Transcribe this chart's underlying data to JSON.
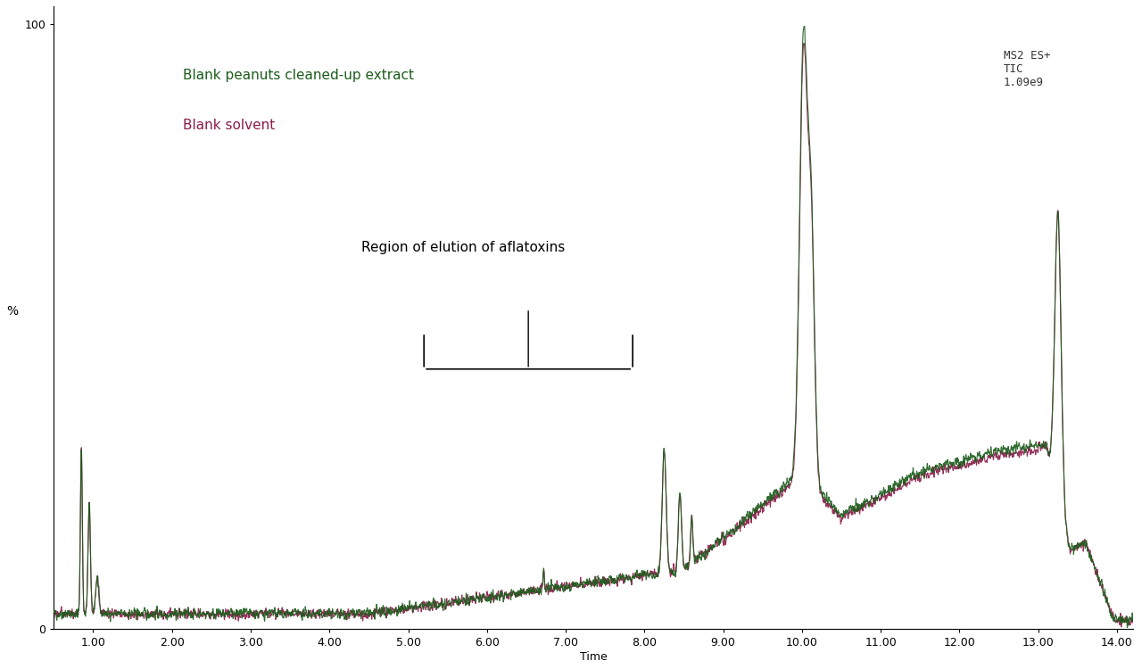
{
  "xlim": [
    0.5,
    14.2
  ],
  "ylim": [
    0,
    103
  ],
  "xlabel": "Time",
  "ylabel": "%",
  "xticks": [
    1.0,
    2.0,
    3.0,
    4.0,
    5.0,
    6.0,
    7.0,
    8.0,
    9.0,
    10.0,
    11.0,
    12.0,
    13.0,
    14.0
  ],
  "yticks": [
    0,
    100
  ],
  "color_peanut": "#1a5c1a",
  "color_solvent": "#8b1a4a",
  "label_peanut": "Blank peanuts cleaned-up extract",
  "label_solvent": "Blank solvent",
  "annotation_text": "Region of elution of aflatoxins",
  "info_text": "MS2 ES+\nTIC\n1.09e9",
  "background_color": "#ffffff",
  "noise_seed": 42
}
